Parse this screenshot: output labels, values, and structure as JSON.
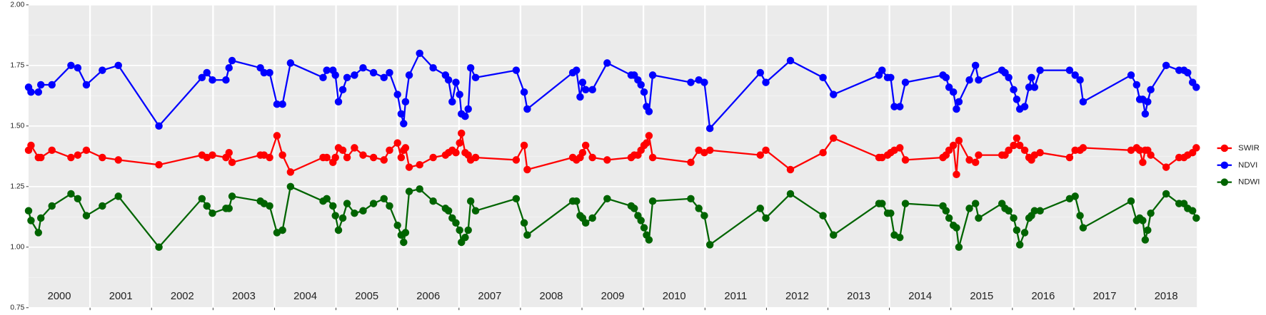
{
  "chart_data": {
    "type": "line",
    "x": [
      2000.0,
      2000.04,
      2000.16,
      2000.2,
      2000.38,
      2000.69,
      2000.8,
      2000.94,
      2001.2,
      2001.46,
      2002.12,
      2002.82,
      2002.9,
      2002.99,
      2003.21,
      2003.26,
      2003.31,
      2003.77,
      2003.83,
      2003.92,
      2004.04,
      2004.13,
      2004.26,
      2004.79,
      2004.85,
      2004.95,
      2004.99,
      2005.04,
      2005.11,
      2005.18,
      2005.3,
      2005.44,
      2005.61,
      2005.78,
      2005.87,
      2006.0,
      2006.06,
      2006.1,
      2006.13,
      2006.19,
      2006.36,
      2006.58,
      2006.78,
      2006.83,
      2006.89,
      2006.95,
      2007.01,
      2007.04,
      2007.1,
      2007.15,
      2007.19,
      2007.27,
      2007.93,
      2008.06,
      2008.11,
      2008.85,
      2008.91,
      2008.97,
      2009.01,
      2009.06,
      2009.17,
      2009.41,
      2009.8,
      2009.85,
      2009.91,
      2009.96,
      2010.01,
      2010.05,
      2010.09,
      2010.15,
      2010.77,
      2010.9,
      2010.99,
      2011.08,
      2011.9,
      2011.99,
      2012.39,
      2012.92,
      2013.09,
      2013.83,
      2013.88,
      2013.97,
      2014.02,
      2014.08,
      2014.17,
      2014.26,
      2014.87,
      2014.92,
      2014.97,
      2015.04,
      2015.09,
      2015.13,
      2015.3,
      2015.4,
      2015.45,
      2015.83,
      2015.88,
      2015.94,
      2016.02,
      2016.07,
      2016.12,
      2016.2,
      2016.27,
      2016.31,
      2016.36,
      2016.45,
      2016.93,
      2017.02,
      2017.1,
      2017.15,
      2017.93,
      2018.02,
      2018.07,
      2018.12,
      2018.16,
      2018.2,
      2018.25,
      2018.5,
      2018.71,
      2018.79,
      2018.85,
      2018.93,
      2018.99
    ],
    "series": [
      {
        "name": "SWIR",
        "color": "#ff0000",
        "values": [
          1.4,
          1.42,
          1.37,
          1.37,
          1.4,
          1.37,
          1.38,
          1.4,
          1.37,
          1.36,
          1.34,
          1.38,
          1.37,
          1.38,
          1.37,
          1.39,
          1.35,
          1.38,
          1.38,
          1.37,
          1.46,
          1.38,
          1.31,
          1.37,
          1.37,
          1.35,
          1.37,
          1.41,
          1.4,
          1.37,
          1.41,
          1.38,
          1.37,
          1.36,
          1.4,
          1.43,
          1.37,
          1.4,
          1.41,
          1.33,
          1.34,
          1.37,
          1.38,
          1.39,
          1.4,
          1.39,
          1.43,
          1.47,
          1.39,
          1.38,
          1.36,
          1.37,
          1.36,
          1.42,
          1.32,
          1.37,
          1.36,
          1.37,
          1.39,
          1.42,
          1.37,
          1.36,
          1.37,
          1.38,
          1.38,
          1.4,
          1.42,
          1.43,
          1.46,
          1.37,
          1.35,
          1.4,
          1.39,
          1.4,
          1.38,
          1.4,
          1.32,
          1.39,
          1.45,
          1.37,
          1.37,
          1.38,
          1.39,
          1.4,
          1.41,
          1.36,
          1.37,
          1.38,
          1.4,
          1.42,
          1.3,
          1.44,
          1.36,
          1.35,
          1.38,
          1.38,
          1.38,
          1.4,
          1.42,
          1.45,
          1.42,
          1.4,
          1.37,
          1.36,
          1.38,
          1.39,
          1.37,
          1.4,
          1.4,
          1.41,
          1.4,
          1.41,
          1.4,
          1.35,
          1.4,
          1.4,
          1.38,
          1.33,
          1.37,
          1.37,
          1.38,
          1.39,
          1.41
        ]
      },
      {
        "name": "NDVI",
        "color": "#0000ff",
        "values": [
          1.66,
          1.64,
          1.64,
          1.67,
          1.67,
          1.75,
          1.74,
          1.67,
          1.73,
          1.75,
          1.5,
          1.7,
          1.72,
          1.69,
          1.69,
          1.74,
          1.77,
          1.74,
          1.72,
          1.72,
          1.59,
          1.59,
          1.76,
          1.7,
          1.73,
          1.73,
          1.71,
          1.6,
          1.65,
          1.7,
          1.71,
          1.74,
          1.72,
          1.7,
          1.72,
          1.63,
          1.55,
          1.51,
          1.6,
          1.71,
          1.8,
          1.74,
          1.71,
          1.69,
          1.6,
          1.68,
          1.63,
          1.55,
          1.54,
          1.57,
          1.74,
          1.7,
          1.73,
          1.64,
          1.57,
          1.72,
          1.73,
          1.62,
          1.68,
          1.65,
          1.65,
          1.76,
          1.71,
          1.71,
          1.69,
          1.67,
          1.64,
          1.58,
          1.56,
          1.71,
          1.68,
          1.69,
          1.68,
          1.49,
          1.72,
          1.68,
          1.77,
          1.7,
          1.63,
          1.71,
          1.73,
          1.7,
          1.7,
          1.58,
          1.58,
          1.68,
          1.71,
          1.7,
          1.66,
          1.64,
          1.57,
          1.6,
          1.69,
          1.75,
          1.69,
          1.73,
          1.72,
          1.7,
          1.65,
          1.61,
          1.57,
          1.58,
          1.66,
          1.7,
          1.66,
          1.73,
          1.73,
          1.71,
          1.69,
          1.6,
          1.71,
          1.67,
          1.61,
          1.61,
          1.55,
          1.6,
          1.65,
          1.75,
          1.73,
          1.73,
          1.72,
          1.68,
          1.66
        ]
      },
      {
        "name": "NDWI",
        "color": "#006400",
        "values": [
          1.15,
          1.11,
          1.06,
          1.12,
          1.17,
          1.22,
          1.2,
          1.13,
          1.17,
          1.21,
          1.0,
          1.2,
          1.17,
          1.14,
          1.16,
          1.16,
          1.21,
          1.19,
          1.18,
          1.17,
          1.06,
          1.07,
          1.25,
          1.19,
          1.2,
          1.17,
          1.13,
          1.07,
          1.12,
          1.18,
          1.14,
          1.15,
          1.18,
          1.2,
          1.17,
          1.09,
          1.05,
          1.02,
          1.06,
          1.23,
          1.24,
          1.19,
          1.16,
          1.15,
          1.12,
          1.1,
          1.07,
          1.02,
          1.04,
          1.07,
          1.19,
          1.15,
          1.2,
          1.1,
          1.05,
          1.19,
          1.19,
          1.13,
          1.12,
          1.1,
          1.12,
          1.2,
          1.17,
          1.16,
          1.13,
          1.11,
          1.08,
          1.05,
          1.03,
          1.19,
          1.2,
          1.16,
          1.13,
          1.01,
          1.16,
          1.12,
          1.22,
          1.13,
          1.05,
          1.18,
          1.18,
          1.14,
          1.14,
          1.05,
          1.04,
          1.18,
          1.17,
          1.15,
          1.12,
          1.09,
          1.08,
          1.0,
          1.16,
          1.18,
          1.12,
          1.18,
          1.16,
          1.15,
          1.12,
          1.07,
          1.01,
          1.06,
          1.12,
          1.13,
          1.15,
          1.15,
          1.2,
          1.21,
          1.13,
          1.08,
          1.19,
          1.11,
          1.12,
          1.11,
          1.03,
          1.07,
          1.14,
          1.22,
          1.18,
          1.18,
          1.16,
          1.15,
          1.12
        ]
      }
    ],
    "xlim": [
      2000,
      2019
    ],
    "xticks": [
      2001,
      2002,
      2003,
      2004,
      2005,
      2006,
      2007,
      2008,
      2009,
      2010,
      2011,
      2012,
      2013,
      2014,
      2015,
      2016,
      2017,
      2018
    ],
    "year_labels": [
      2000,
      2001,
      2002,
      2003,
      2004,
      2005,
      2006,
      2007,
      2008,
      2009,
      2010,
      2011,
      2012,
      2013,
      2014,
      2015,
      2016,
      2017,
      2018
    ],
    "ylim": [
      0.75,
      2.0
    ],
    "yticks": [
      {
        "value": 0.75,
        "label": "0.75"
      },
      {
        "value": 1.0,
        "label": "1.00"
      },
      {
        "value": 1.25,
        "label": "1.25"
      },
      {
        "value": 1.5,
        "label": "1.50"
      },
      {
        "value": 1.75,
        "label": "1.75"
      },
      {
        "value": 2.0,
        "label": "2.00"
      }
    ],
    "grid": true,
    "legend": "right"
  }
}
